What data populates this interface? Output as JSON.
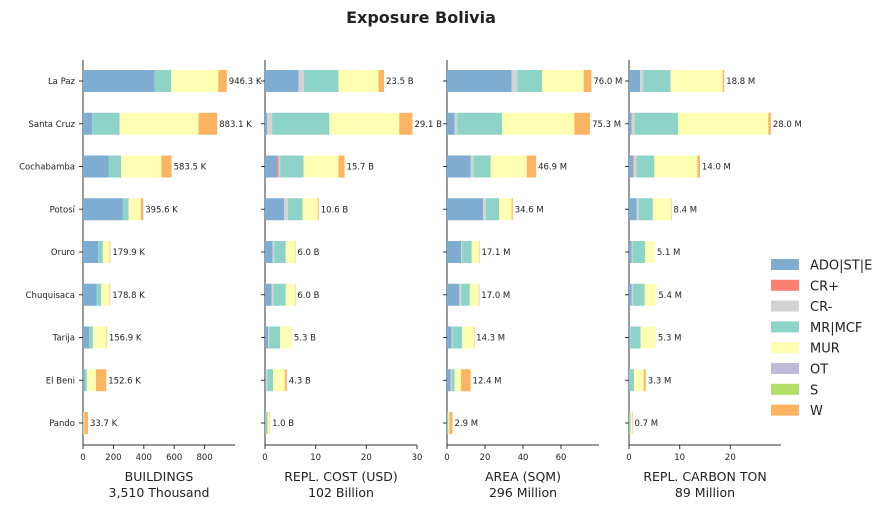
{
  "chart_data": {
    "type": "bar",
    "orientation": "horizontal",
    "stacked": true,
    "title": "Exposure Bolivia",
    "categories": [
      "La Paz",
      "Santa Cruz",
      "Cochabamba",
      "Potosí",
      "Oruro",
      "Chuquisaca",
      "Tarija",
      "El Beni",
      "Pando"
    ],
    "legend": {
      "position": "right",
      "items": [
        {
          "name": "ADO|ST|E",
          "color": "#7facd1"
        },
        {
          "name": "CR+",
          "color": "#fb8072"
        },
        {
          "name": "CR-",
          "color": "#d3d3d3"
        },
        {
          "name": "MR|MCF",
          "color": "#8dd3c7"
        },
        {
          "name": "MUR",
          "color": "#ffffb3"
        },
        {
          "name": "OT",
          "color": "#bebada"
        },
        {
          "name": "S",
          "color": "#b3de69"
        },
        {
          "name": "W",
          "color": "#fdb462"
        }
      ]
    },
    "panels": [
      {
        "xlabel": "BUILDINGS",
        "subtitle": "3,510 Thousand",
        "xlim": [
          0,
          1000
        ],
        "xticks": [
          0,
          200,
          400,
          600,
          800
        ],
        "totals": [
          "946.3 K",
          "883.1 K",
          "583.5 K",
          "395.6 K",
          "179.9 K",
          "178.8 K",
          "156.9 K",
          "152.6 K",
          "33.7 K"
        ],
        "segments": [
          [
            470,
            0,
            0,
            110,
            310,
            0,
            0,
            56
          ],
          [
            60,
            0,
            0,
            180,
            520,
            0,
            0,
            123
          ],
          [
            170,
            0,
            0,
            80,
            265,
            0,
            0,
            68
          ],
          [
            260,
            0,
            0,
            40,
            80,
            0,
            0,
            16
          ],
          [
            100,
            0,
            0,
            30,
            45,
            0,
            0,
            5
          ],
          [
            90,
            0,
            0,
            30,
            55,
            0,
            0,
            4
          ],
          [
            40,
            0,
            0,
            25,
            90,
            0,
            0,
            2
          ],
          [
            10,
            0,
            0,
            15,
            60,
            0,
            0,
            68
          ],
          [
            2,
            0,
            0,
            2,
            4,
            0,
            0,
            25
          ]
        ]
      },
      {
        "xlabel": "REPL. COST (USD)",
        "subtitle": "102 Billion",
        "xlim": [
          0,
          30
        ],
        "xticks": [
          0,
          10,
          20,
          30
        ],
        "totals": [
          "23.5 B",
          "29.1 B",
          "15.7 B",
          "10.6 B",
          "6.0 B",
          "6.0 B",
          "5.3 B",
          "4.3 B",
          "1.0 B"
        ],
        "segments": [
          [
            6.6,
            0,
            1.1,
            6.8,
            7.9,
            0,
            0,
            1.1
          ],
          [
            0.4,
            0,
            1.0,
            11.3,
            13.8,
            0,
            0,
            2.6
          ],
          [
            2.4,
            0.3,
            0.3,
            4.6,
            6.9,
            0,
            0,
            1.2
          ],
          [
            3.8,
            0,
            0.7,
            2.9,
            3.0,
            0,
            0,
            0.2
          ],
          [
            1.5,
            0,
            0.3,
            2.3,
            1.8,
            0,
            0,
            0.1
          ],
          [
            1.3,
            0,
            0.4,
            2.4,
            1.8,
            0,
            0,
            0.1
          ],
          [
            0.6,
            0,
            0.2,
            2.2,
            2.3,
            0,
            0,
            0
          ],
          [
            0.2,
            0,
            0.3,
            1.1,
            2.3,
            0,
            0,
            0.4
          ],
          [
            0.1,
            0,
            0.1,
            0.3,
            0.4,
            0,
            0,
            0.1
          ]
        ]
      },
      {
        "xlabel": "AREA (SQM)",
        "subtitle": "296 Million",
        "xlim": [
          0,
          80
        ],
        "xticks": [
          0,
          20,
          40,
          60
        ],
        "totals": [
          "76.0 M",
          "75.3 M",
          "46.9 M",
          "34.6 M",
          "17.1 M",
          "17.0 M",
          "14.3 M",
          "12.4 M",
          "2.9 M"
        ],
        "segments": [
          [
            34,
            0,
            3,
            13,
            22,
            0,
            0,
            4
          ],
          [
            4,
            0,
            1.5,
            23.5,
            38,
            0,
            0,
            8.3
          ],
          [
            12.5,
            0,
            1.5,
            9,
            19,
            0,
            0,
            4.9
          ],
          [
            19,
            0,
            1.5,
            7,
            6.5,
            0,
            0,
            0.6
          ],
          [
            7.5,
            0,
            0.5,
            5,
            3.8,
            0,
            0,
            0.3
          ],
          [
            6.5,
            0,
            1,
            4.5,
            4.7,
            0,
            0,
            0.3
          ],
          [
            2.5,
            0,
            0.5,
            5,
            6.2,
            0,
            0,
            0.1
          ],
          [
            2,
            0,
            0.5,
            1.5,
            3.4,
            0,
            0,
            5
          ],
          [
            0.3,
            0,
            0.1,
            0.3,
            0.5,
            0,
            0,
            1.7
          ]
        ]
      },
      {
        "xlabel": "REPL. CARBON TON",
        "subtitle": "89 Million",
        "xlim": [
          0,
          30
        ],
        "xticks": [
          0,
          10,
          20
        ],
        "totals": [
          "18.8 M",
          "28.0 M",
          "14.0 M",
          "8.4 M",
          "5.1 M",
          "5.4 M",
          "5.3 M",
          "3.3 M",
          "0.7 M"
        ],
        "segments": [
          [
            2.2,
            0,
            0.6,
            5.4,
            10.3,
            0,
            0,
            0.3
          ],
          [
            0.5,
            0,
            0.6,
            8.6,
            17.8,
            0,
            0,
            0.5
          ],
          [
            0.8,
            0.1,
            0.6,
            3.5,
            8.5,
            0,
            0,
            0.5
          ],
          [
            1.5,
            0,
            0.4,
            2.8,
            3.6,
            0,
            0,
            0.1
          ],
          [
            0.5,
            0,
            0.2,
            2.5,
            1.9,
            0,
            0,
            0
          ],
          [
            0.5,
            0,
            0.3,
            2.3,
            2.3,
            0,
            0,
            0
          ],
          [
            0.2,
            0,
            0.1,
            2.0,
            3.0,
            0,
            0,
            0
          ],
          [
            0.1,
            0,
            0.1,
            0.8,
            1.9,
            0,
            0,
            0.4
          ],
          [
            0.05,
            0,
            0.05,
            0.2,
            0.3,
            0,
            0,
            0.1
          ]
        ]
      }
    ]
  }
}
